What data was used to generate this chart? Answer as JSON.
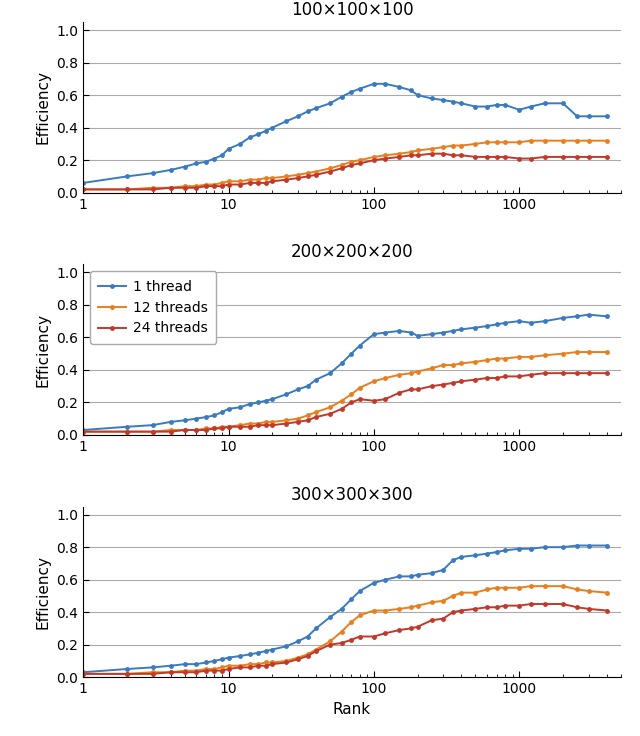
{
  "titles": [
    "100×100×100",
    "200×200×200",
    "300×300×300"
  ],
  "xlabel": "Rank",
  "ylabel": "Efficiency",
  "xlim": [
    1,
    5000
  ],
  "ylim": [
    0.0,
    1.05
  ],
  "yticks": [
    0.0,
    0.2,
    0.4,
    0.6,
    0.8,
    1.0
  ],
  "ytick_labels": [
    "0.0",
    "0.2",
    "0.4",
    "0.6",
    "0.8",
    "1.0"
  ],
  "xtick_labels": [
    "1",
    "10",
    "100",
    "1000"
  ],
  "xtick_vals": [
    1,
    10,
    100,
    1000
  ],
  "legend_labels": [
    "1 thread",
    "12 threads",
    "24 threads"
  ],
  "colors": [
    "#3a7abf",
    "#e87e1e",
    "#c0392b"
  ],
  "x_values": [
    1,
    2,
    3,
    4,
    5,
    6,
    7,
    8,
    9,
    10,
    12,
    14,
    16,
    18,
    20,
    25,
    30,
    35,
    40,
    50,
    60,
    70,
    80,
    100,
    120,
    150,
    180,
    200,
    250,
    300,
    350,
    400,
    500,
    600,
    700,
    800,
    1000,
    1200,
    1500,
    2000,
    2500,
    3000,
    4000
  ],
  "data": {
    "100x100x100": {
      "blue": [
        0.06,
        0.1,
        0.12,
        0.14,
        0.16,
        0.18,
        0.19,
        0.21,
        0.23,
        0.27,
        0.3,
        0.34,
        0.36,
        0.38,
        0.4,
        0.44,
        0.47,
        0.5,
        0.52,
        0.55,
        0.59,
        0.62,
        0.64,
        0.67,
        0.67,
        0.65,
        0.63,
        0.6,
        0.58,
        0.57,
        0.56,
        0.55,
        0.53,
        0.53,
        0.54,
        0.54,
        0.51,
        0.53,
        0.55,
        0.55,
        0.47,
        0.47,
        0.47
      ],
      "orange": [
        0.02,
        0.02,
        0.03,
        0.03,
        0.04,
        0.04,
        0.05,
        0.05,
        0.06,
        0.07,
        0.07,
        0.08,
        0.08,
        0.09,
        0.09,
        0.1,
        0.11,
        0.12,
        0.13,
        0.15,
        0.17,
        0.19,
        0.2,
        0.22,
        0.23,
        0.24,
        0.25,
        0.26,
        0.27,
        0.28,
        0.29,
        0.29,
        0.3,
        0.31,
        0.31,
        0.31,
        0.31,
        0.32,
        0.32,
        0.32,
        0.32,
        0.32,
        0.32
      ],
      "red": [
        0.02,
        0.02,
        0.02,
        0.03,
        0.03,
        0.03,
        0.04,
        0.04,
        0.04,
        0.05,
        0.05,
        0.06,
        0.06,
        0.06,
        0.07,
        0.08,
        0.09,
        0.1,
        0.11,
        0.13,
        0.15,
        0.17,
        0.18,
        0.2,
        0.21,
        0.22,
        0.23,
        0.23,
        0.24,
        0.24,
        0.23,
        0.23,
        0.22,
        0.22,
        0.22,
        0.22,
        0.21,
        0.21,
        0.22,
        0.22,
        0.22,
        0.22,
        0.22
      ]
    },
    "200x200x200": {
      "blue": [
        0.03,
        0.05,
        0.06,
        0.08,
        0.09,
        0.1,
        0.11,
        0.12,
        0.14,
        0.16,
        0.17,
        0.19,
        0.2,
        0.21,
        0.22,
        0.25,
        0.28,
        0.3,
        0.34,
        0.38,
        0.44,
        0.5,
        0.55,
        0.62,
        0.63,
        0.64,
        0.63,
        0.61,
        0.62,
        0.63,
        0.64,
        0.65,
        0.66,
        0.67,
        0.68,
        0.69,
        0.7,
        0.69,
        0.7,
        0.72,
        0.73,
        0.74,
        0.73
      ],
      "orange": [
        0.02,
        0.02,
        0.02,
        0.03,
        0.03,
        0.03,
        0.04,
        0.04,
        0.05,
        0.05,
        0.06,
        0.07,
        0.07,
        0.08,
        0.08,
        0.09,
        0.1,
        0.12,
        0.14,
        0.17,
        0.21,
        0.25,
        0.29,
        0.33,
        0.35,
        0.37,
        0.38,
        0.39,
        0.41,
        0.43,
        0.43,
        0.44,
        0.45,
        0.46,
        0.47,
        0.47,
        0.48,
        0.48,
        0.49,
        0.5,
        0.51,
        0.51,
        0.51
      ],
      "red": [
        0.02,
        0.02,
        0.02,
        0.02,
        0.03,
        0.03,
        0.03,
        0.04,
        0.04,
        0.05,
        0.05,
        0.05,
        0.06,
        0.06,
        0.06,
        0.07,
        0.08,
        0.09,
        0.11,
        0.13,
        0.16,
        0.2,
        0.22,
        0.21,
        0.22,
        0.26,
        0.28,
        0.28,
        0.3,
        0.31,
        0.32,
        0.33,
        0.34,
        0.35,
        0.35,
        0.36,
        0.36,
        0.37,
        0.38,
        0.38,
        0.38,
        0.38,
        0.38
      ]
    },
    "300x300x300": {
      "blue": [
        0.03,
        0.05,
        0.06,
        0.07,
        0.08,
        0.08,
        0.09,
        0.1,
        0.11,
        0.12,
        0.13,
        0.14,
        0.15,
        0.16,
        0.17,
        0.19,
        0.22,
        0.25,
        0.3,
        0.37,
        0.42,
        0.48,
        0.53,
        0.58,
        0.6,
        0.62,
        0.62,
        0.63,
        0.64,
        0.66,
        0.72,
        0.74,
        0.75,
        0.76,
        0.77,
        0.78,
        0.79,
        0.79,
        0.8,
        0.8,
        0.81,
        0.81,
        0.81
      ],
      "orange": [
        0.02,
        0.02,
        0.03,
        0.03,
        0.04,
        0.04,
        0.05,
        0.05,
        0.06,
        0.07,
        0.07,
        0.08,
        0.08,
        0.09,
        0.09,
        0.1,
        0.12,
        0.14,
        0.17,
        0.22,
        0.28,
        0.34,
        0.38,
        0.41,
        0.41,
        0.42,
        0.43,
        0.44,
        0.46,
        0.47,
        0.5,
        0.52,
        0.52,
        0.54,
        0.55,
        0.55,
        0.55,
        0.56,
        0.56,
        0.56,
        0.54,
        0.53,
        0.52
      ],
      "red": [
        0.02,
        0.02,
        0.02,
        0.03,
        0.03,
        0.03,
        0.04,
        0.04,
        0.04,
        0.05,
        0.06,
        0.06,
        0.07,
        0.07,
        0.08,
        0.09,
        0.11,
        0.13,
        0.16,
        0.2,
        0.21,
        0.23,
        0.25,
        0.25,
        0.27,
        0.29,
        0.3,
        0.31,
        0.35,
        0.36,
        0.4,
        0.41,
        0.42,
        0.43,
        0.43,
        0.44,
        0.44,
        0.45,
        0.45,
        0.45,
        0.43,
        0.42,
        0.41
      ]
    }
  },
  "marker": "o",
  "markersize": 3.5,
  "linewidth": 1.4,
  "grid_color": "#aaaaaa",
  "grid_linewidth": 0.8,
  "legend_subplot": 1,
  "legend_loc": "upper left",
  "legend_fontsize": 10,
  "title_fontsize": 12,
  "axis_label_fontsize": 11,
  "tick_fontsize": 10
}
